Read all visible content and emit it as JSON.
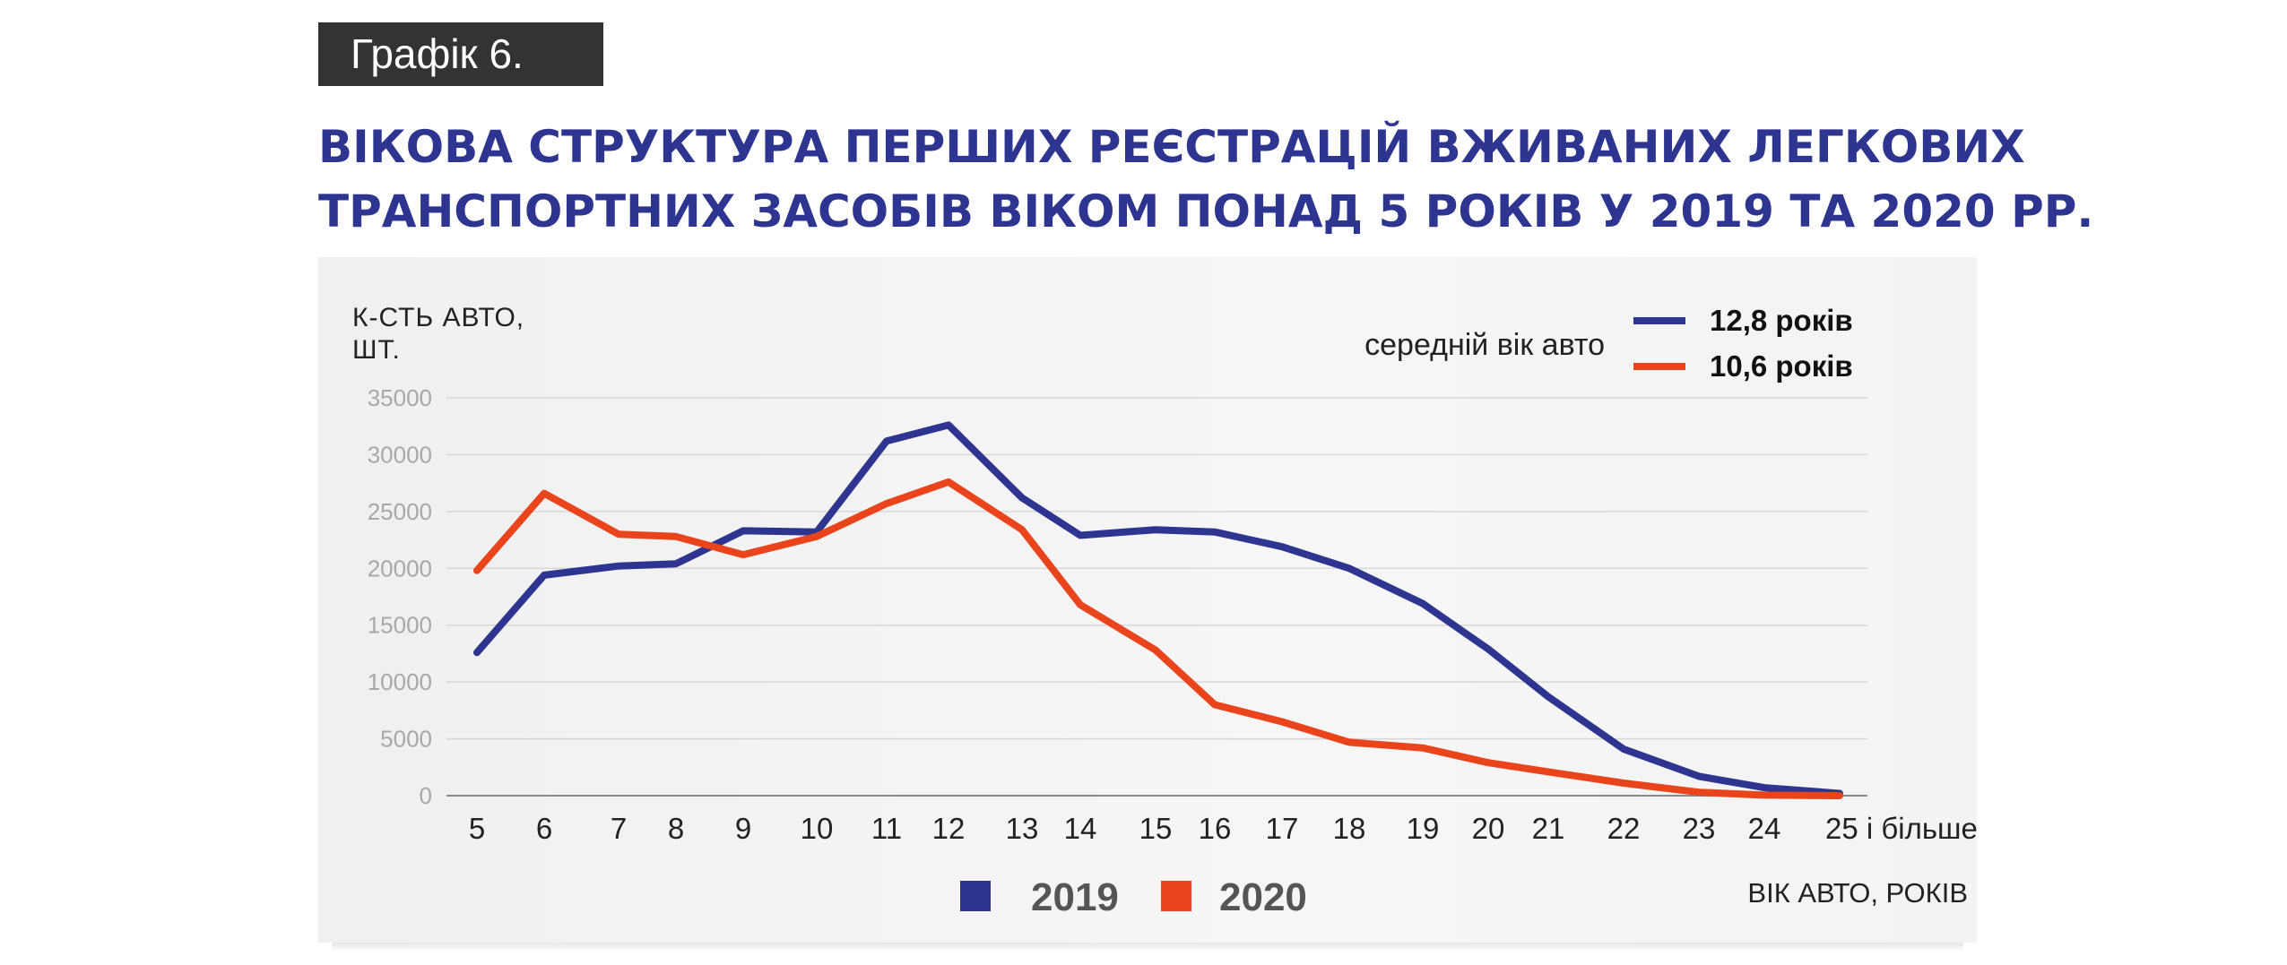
{
  "badge": "Графік 6.",
  "title": {
    "line1": "ВІКОВА СТРУКТУРА ПЕРШИХ РЕЄСТРАЦІЙ ВЖИВАНИХ ЛЕГКОВИХ",
    "line2": "ТРАНСПОРТНИХ ЗАСОБІВ ВІКОМ ПОНАД 5 РОКІВ У 2019 ТА 2020 РР."
  },
  "average_age": {
    "label": "середній вік авто",
    "values": [
      {
        "series": "2019",
        "text": "12,8 років"
      },
      {
        "series": "2020",
        "text": "10,6 років"
      }
    ]
  },
  "chart_data": {
    "type": "line",
    "ylabel": [
      "К-СТЬ АВТО,",
      "ШТ."
    ],
    "xlabel": "ВІК АВТО, РОКІВ",
    "ylim": [
      0,
      35000
    ],
    "yticks": [
      "0",
      "5000",
      "10000",
      "15000",
      "20000",
      "25000",
      "30000",
      "35000"
    ],
    "grid": true,
    "legend_position": "bottom-center",
    "categories": [
      "5",
      "6",
      "7",
      "8",
      "9",
      "10",
      "11",
      "12",
      "13",
      "14",
      "15",
      "16",
      "17",
      "18",
      "19",
      "20",
      "21",
      "22",
      "23",
      "24",
      "25 і більше"
    ],
    "series": [
      {
        "name": "2019",
        "color": "#2d3591",
        "values": [
          12600,
          19400,
          20200,
          20400,
          23300,
          23200,
          31200,
          32600,
          26200,
          22900,
          23400,
          23200,
          21900,
          20000,
          16900,
          12900,
          8700,
          4100,
          1700,
          700,
          200
        ]
      },
      {
        "name": "2020",
        "color": "#e9441c",
        "values": [
          19800,
          26600,
          23000,
          22800,
          21200,
          22800,
          25700,
          27600,
          23400,
          16800,
          12800,
          8000,
          6500,
          4700,
          4200,
          2900,
          2100,
          1100,
          300,
          50,
          0
        ]
      }
    ]
  }
}
